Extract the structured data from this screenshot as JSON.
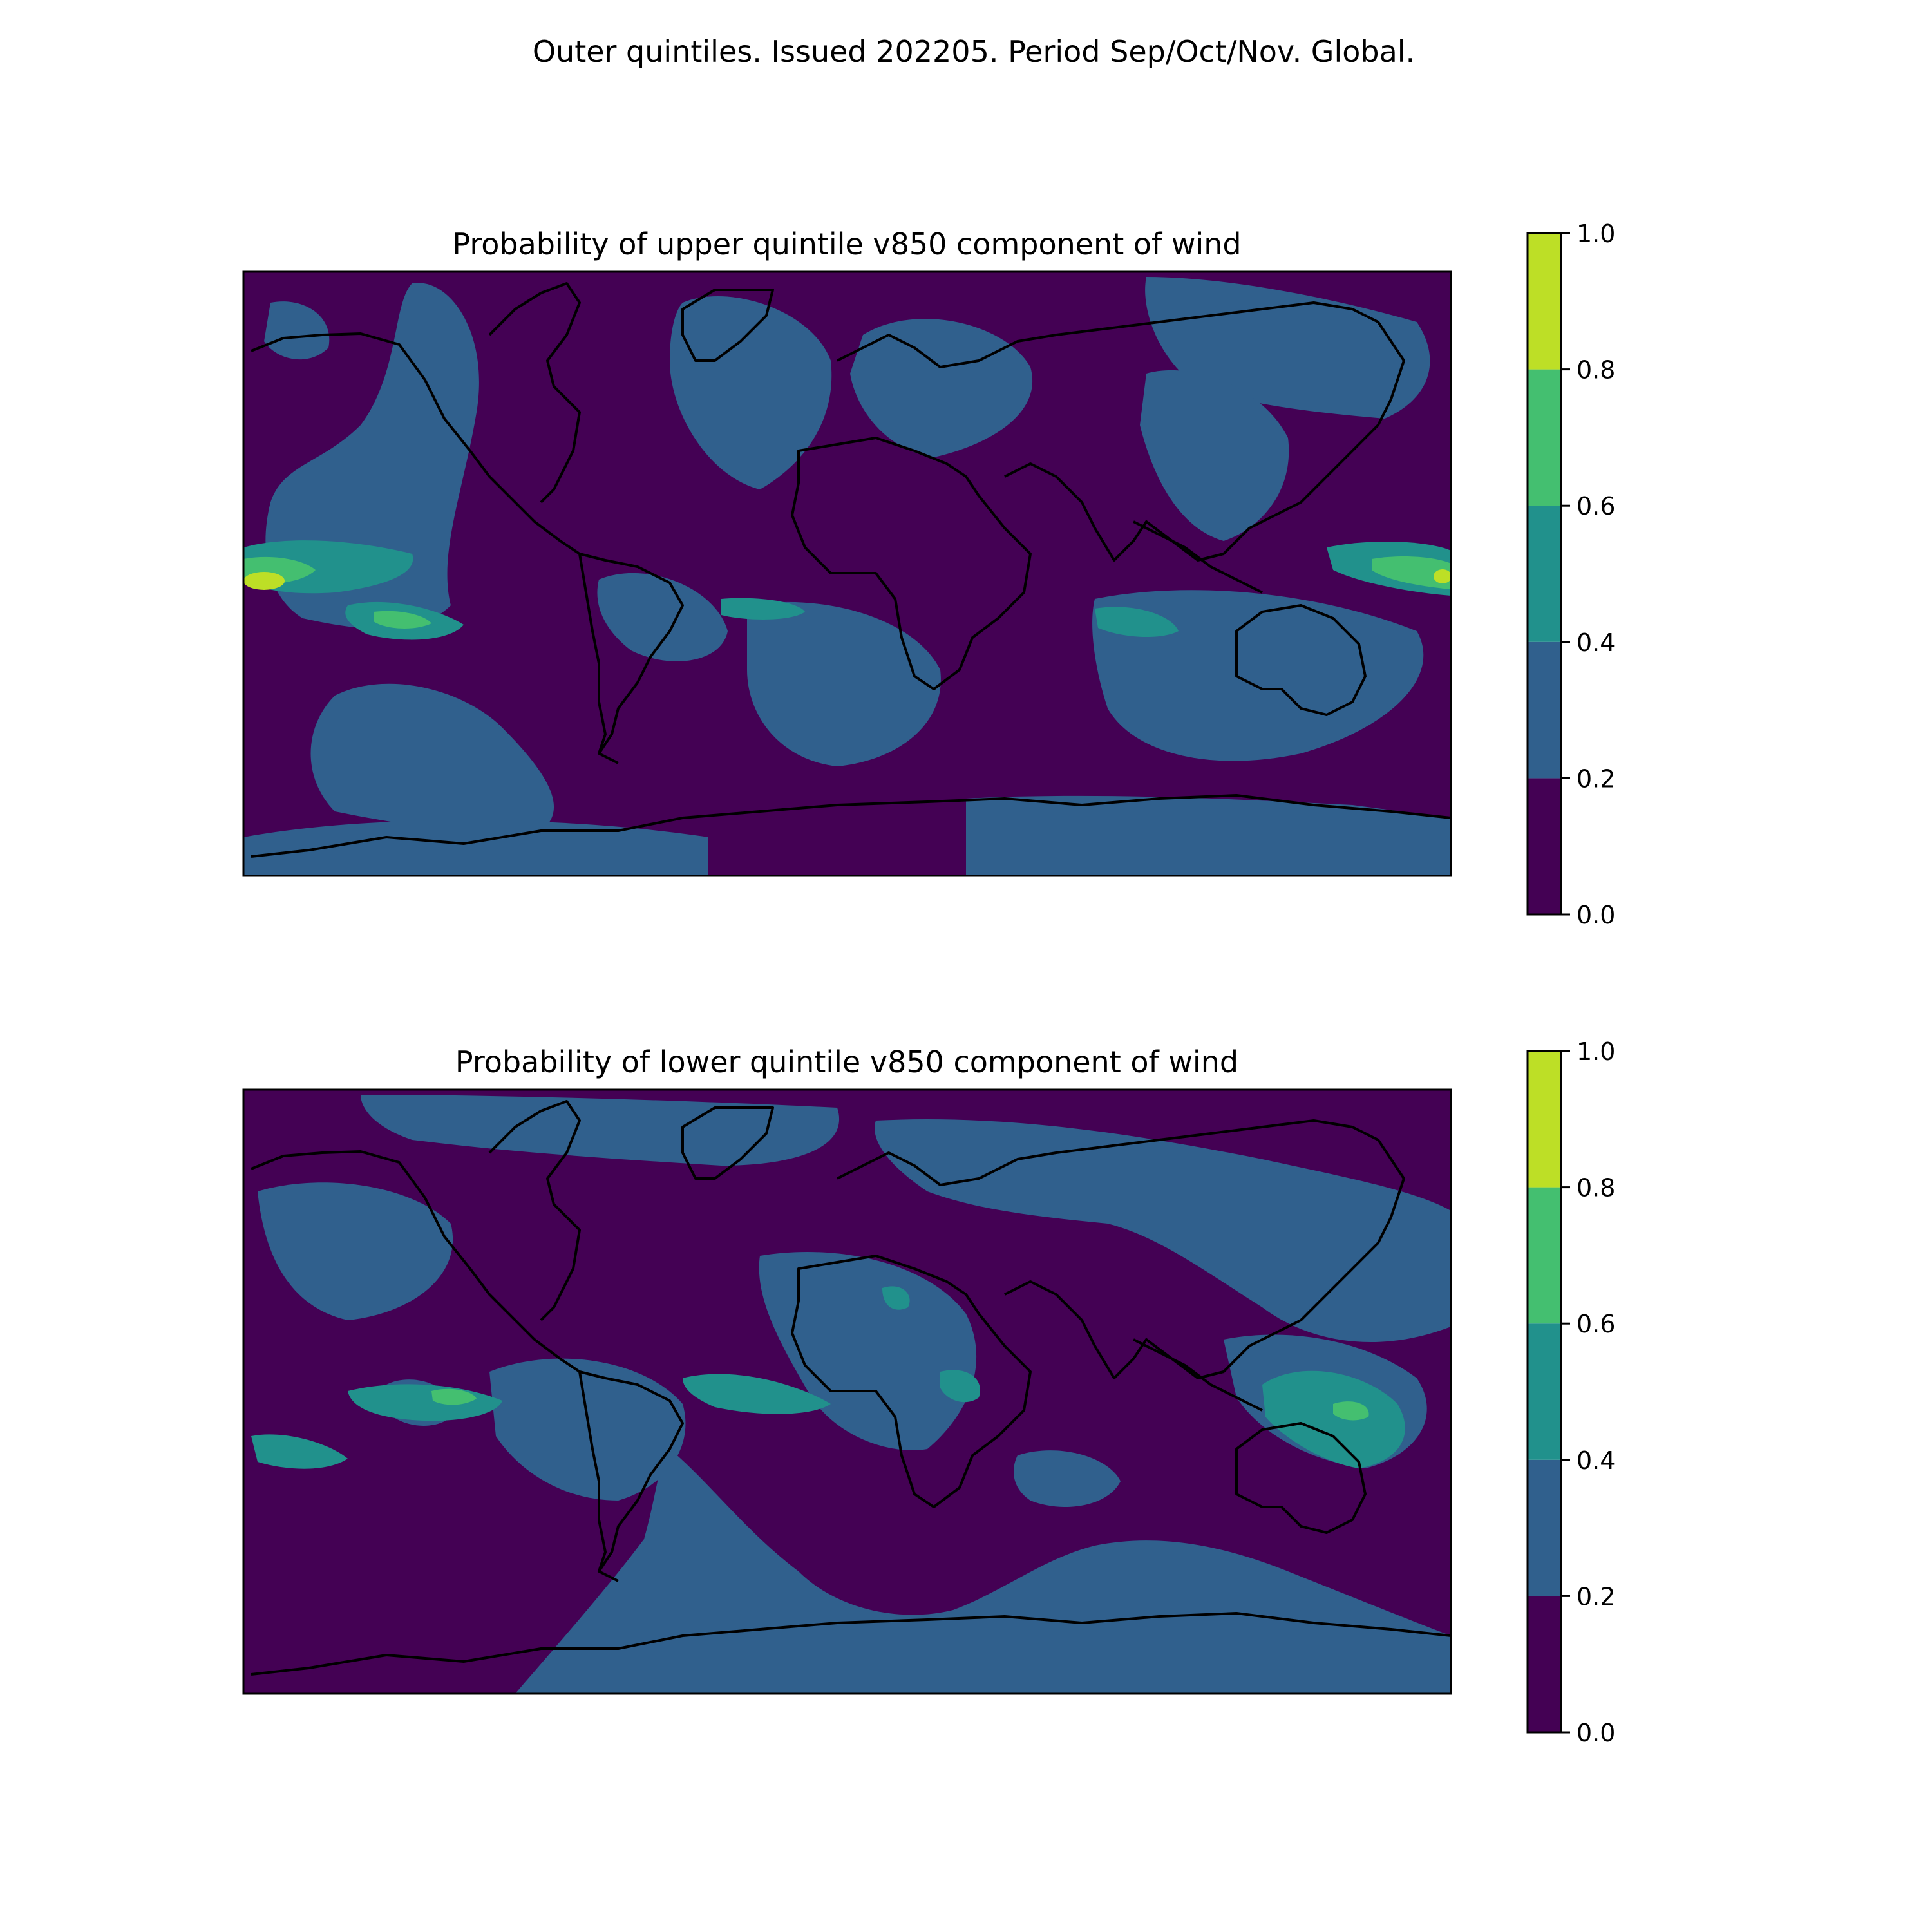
{
  "suptitle": "Outer quintiles. Issued 202205. Period Sep/Oct/Nov. Global.",
  "palette": {
    "levels": [
      "#440154",
      "#30608d",
      "#21918c",
      "#44bf70",
      "#bddf26"
    ],
    "coastline": "#000000"
  },
  "panels": [
    {
      "title": "Probability of upper quintile v850 component of wind",
      "colorbar": {
        "ticks": [
          "0.0",
          "0.2",
          "0.4",
          "0.6",
          "0.8",
          "1.0"
        ],
        "bounds": [
          0.0,
          0.2,
          0.4,
          0.6,
          0.8,
          1.0
        ]
      }
    },
    {
      "title": "Probability of lower quintile v850 component of wind",
      "colorbar": {
        "ticks": [
          "0.0",
          "0.2",
          "0.4",
          "0.6",
          "0.8",
          "1.0"
        ],
        "bounds": [
          0.0,
          0.2,
          0.4,
          0.6,
          0.8,
          1.0
        ]
      }
    }
  ]
}
